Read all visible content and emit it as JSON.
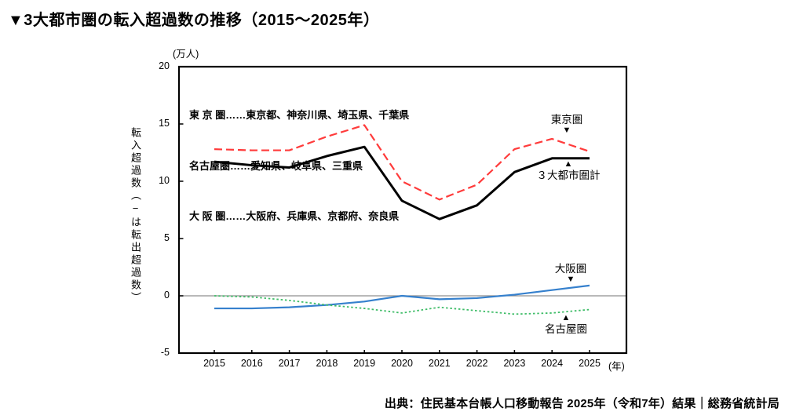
{
  "title": "▼3大都市圏の転入超過数の推移（2015～2025年）",
  "source": "出典：住民基本台帳人口移動報告 2025年（令和7年）結果｜総務省統計局",
  "y_axis": {
    "unit": "(万人)",
    "label_parts": [
      "転入超過数（",
      "−",
      "は転出超過数）"
    ],
    "ticks": [
      20,
      15,
      10,
      5,
      0,
      -5
    ]
  },
  "x_axis": {
    "unit": "(年)"
  },
  "legend": {
    "lines": [
      "東 京 圏……東京都、神奈川県、埼玉県、千葉県",
      "名古屋圏……愛知県、岐阜県、三重県",
      "大 阪 圏……大阪府、兵庫県、京都府、奈良県"
    ]
  },
  "annotations": [
    {
      "label": "東京圏",
      "marker": "▼"
    },
    {
      "label": "３大都市圏計",
      "marker": "▲"
    },
    {
      "label": "大阪圏",
      "marker": "▼"
    },
    {
      "label": "名古屋圏",
      "marker": "▲"
    }
  ],
  "chart_data": {
    "type": "line",
    "title": "3大都市圏の転入超過数の推移（2015～2025年）",
    "x": [
      2015,
      2016,
      2017,
      2018,
      2019,
      2020,
      2021,
      2022,
      2023,
      2024,
      2025
    ],
    "xlabel": "(年)",
    "ylabel": "転入超過数（−は転出超過数）",
    "y_unit": "万人",
    "ylim": [
      -5,
      20
    ],
    "grid": false,
    "zero_line": true,
    "legend_position": "upper-left-inside",
    "series": [
      {
        "name": "東京圏",
        "color": "#ff3b3b",
        "style": "dashed",
        "values": [
          12.8,
          12.7,
          12.7,
          13.9,
          14.9,
          10.0,
          8.4,
          9.7,
          12.8,
          13.7,
          12.6
        ]
      },
      {
        "name": "３大都市圏計",
        "color": "#000000",
        "style": "solid",
        "values": [
          11.7,
          11.4,
          11.2,
          12.2,
          13.0,
          8.3,
          6.7,
          7.9,
          10.8,
          12.0,
          12.0
        ]
      },
      {
        "name": "大阪圏",
        "color": "#3580cd",
        "style": "solid",
        "values": [
          -1.1,
          -1.1,
          -1.0,
          -0.8,
          -0.5,
          0.0,
          -0.3,
          -0.2,
          0.1,
          0.5,
          0.9
        ]
      },
      {
        "name": "名古屋圏",
        "color": "#3fbd68",
        "style": "dotted",
        "values": [
          0.0,
          -0.1,
          -0.4,
          -0.8,
          -1.1,
          -1.5,
          -1.0,
          -1.3,
          -1.6,
          -1.5,
          -1.2
        ]
      }
    ]
  }
}
